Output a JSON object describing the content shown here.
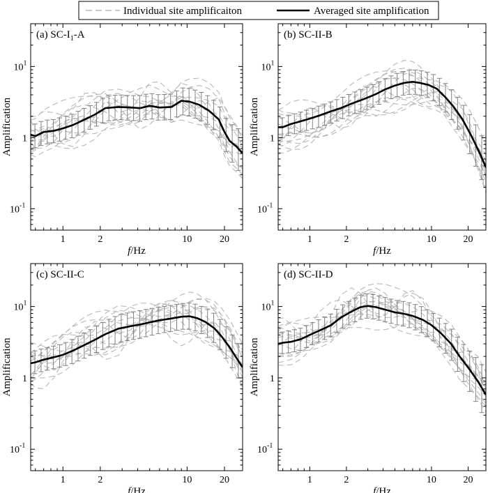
{
  "legend": {
    "individual_label": "Individual site amplificaiton",
    "average_label": "Averaged site amplification",
    "individual_color": "#b8b8b8",
    "average_color": "#000000",
    "errorbar_color": "#808080"
  },
  "chart_data": [
    {
      "type": "line",
      "panel_label": "(a) SC-I",
      "panel_label_sub": "1",
      "panel_label_suffix": "-A",
      "xlabel_italic": "f",
      "xlabel_rest": "/Hz",
      "ylabel": "Amplification",
      "xscale": "log",
      "yscale": "log",
      "xlim": [
        0.55,
        28
      ],
      "ylim": [
        0.05,
        40
      ],
      "x_ticks": [
        {
          "value": 1,
          "label": "1"
        },
        {
          "value": 2,
          "label": "2"
        },
        {
          "value": 10,
          "label": "10"
        },
        {
          "value": 20,
          "label": "20"
        }
      ],
      "y_ticks": [
        {
          "value": 0.1,
          "base": "10",
          "exp": "-1"
        },
        {
          "value": 1,
          "base": "1",
          "exp": ""
        },
        {
          "value": 10,
          "base": "10",
          "exp": "1"
        }
      ],
      "series": [
        {
          "role": "average",
          "x": [
            0.55,
            0.6,
            0.7,
            0.85,
            1.0,
            1.2,
            1.5,
            1.8,
            2.2,
            2.8,
            3.5,
            4.2,
            5.0,
            6.0,
            7.5,
            9.0,
            10.5,
            12.5,
            15.0,
            18.0,
            20.0,
            22.0,
            25.0,
            28.0
          ],
          "y": [
            1.1,
            1.05,
            1.2,
            1.25,
            1.35,
            1.5,
            1.8,
            2.1,
            2.6,
            2.7,
            2.65,
            2.6,
            2.8,
            2.65,
            2.7,
            3.3,
            3.2,
            2.9,
            2.4,
            1.8,
            1.2,
            0.9,
            0.75,
            0.6
          ],
          "err_low": [
            0.75,
            0.72,
            0.8,
            0.85,
            0.92,
            1.0,
            1.2,
            1.4,
            1.7,
            1.8,
            1.75,
            1.7,
            1.85,
            1.75,
            1.8,
            2.1,
            2.0,
            1.8,
            1.5,
            1.1,
            0.7,
            0.5,
            0.38,
            0.28
          ],
          "err_high": [
            1.6,
            1.55,
            1.75,
            1.8,
            1.95,
            2.15,
            2.6,
            3.0,
            3.8,
            4.0,
            3.9,
            3.9,
            4.2,
            4.0,
            4.1,
            5.0,
            4.9,
            4.5,
            3.8,
            2.9,
            2.0,
            1.6,
            1.4,
            1.2
          ]
        }
      ]
    },
    {
      "type": "line",
      "panel_label": "(b) SC-II-B",
      "panel_label_sub": "",
      "panel_label_suffix": "",
      "xlabel_italic": "f",
      "xlabel_rest": "/Hz",
      "ylabel": "Amplification",
      "xscale": "log",
      "yscale": "log",
      "xlim": [
        0.55,
        28
      ],
      "ylim": [
        0.05,
        40
      ],
      "x_ticks": [
        {
          "value": 1,
          "label": "1"
        },
        {
          "value": 2,
          "label": "2"
        },
        {
          "value": 10,
          "label": "10"
        },
        {
          "value": 20,
          "label": "20"
        }
      ],
      "y_ticks": [
        {
          "value": 0.1,
          "base": "10",
          "exp": "-1"
        },
        {
          "value": 1,
          "base": "1",
          "exp": ""
        },
        {
          "value": 10,
          "base": "10",
          "exp": "1"
        }
      ],
      "series": [
        {
          "role": "average",
          "x": [
            0.55,
            0.6,
            0.7,
            0.85,
            1.0,
            1.2,
            1.5,
            1.8,
            2.2,
            2.8,
            3.5,
            4.2,
            5.0,
            6.0,
            7.0,
            8.0,
            9.5,
            11.0,
            13.0,
            15.0,
            18.0,
            21.0,
            25.0,
            28.0
          ],
          "y": [
            1.4,
            1.4,
            1.55,
            1.7,
            1.85,
            2.05,
            2.35,
            2.6,
            3.0,
            3.5,
            4.1,
            4.8,
            5.4,
            5.9,
            6.1,
            5.9,
            5.5,
            4.9,
            3.7,
            2.8,
            1.8,
            1.1,
            0.6,
            0.38
          ],
          "err_low": [
            1.0,
            1.0,
            1.1,
            1.2,
            1.3,
            1.4,
            1.6,
            1.8,
            2.1,
            2.4,
            2.8,
            3.3,
            3.7,
            4.0,
            4.1,
            4.0,
            3.6,
            3.1,
            2.3,
            1.7,
            1.0,
            0.55,
            0.3,
            0.18
          ],
          "err_high": [
            1.9,
            1.9,
            2.1,
            2.3,
            2.5,
            2.8,
            3.2,
            3.6,
            4.2,
            4.9,
            5.8,
            6.8,
            7.8,
            8.6,
            9.0,
            8.8,
            8.2,
            7.4,
            5.8,
            4.5,
            3.0,
            2.0,
            1.2,
            0.8
          ]
        }
      ]
    },
    {
      "type": "line",
      "panel_label": "(c) SC-II-C",
      "panel_label_sub": "",
      "panel_label_suffix": "",
      "xlabel_italic": "f",
      "xlabel_rest": "/Hz",
      "ylabel": "Amplification",
      "xscale": "log",
      "yscale": "log",
      "xlim": [
        0.55,
        28
      ],
      "ylim": [
        0.05,
        40
      ],
      "x_ticks": [
        {
          "value": 1,
          "label": "1"
        },
        {
          "value": 2,
          "label": "2"
        },
        {
          "value": 10,
          "label": "10"
        },
        {
          "value": 20,
          "label": "20"
        }
      ],
      "y_ticks": [
        {
          "value": 0.1,
          "base": "10",
          "exp": "-1"
        },
        {
          "value": 1,
          "base": "1",
          "exp": ""
        },
        {
          "value": 10,
          "base": "10",
          "exp": "1"
        }
      ],
      "series": [
        {
          "role": "average",
          "x": [
            0.55,
            0.6,
            0.7,
            0.85,
            1.0,
            1.2,
            1.5,
            1.8,
            2.2,
            2.8,
            3.5,
            4.2,
            5.0,
            6.0,
            7.5,
            9.0,
            10.5,
            12.0,
            14.0,
            16.5,
            19.0,
            22.0,
            25.0,
            28.0
          ],
          "y": [
            1.6,
            1.65,
            1.8,
            1.95,
            2.1,
            2.4,
            2.9,
            3.4,
            4.1,
            4.9,
            5.3,
            5.6,
            6.0,
            6.4,
            6.8,
            7.2,
            7.3,
            6.9,
            6.1,
            5.0,
            3.8,
            2.7,
            1.9,
            1.4
          ],
          "err_low": [
            1.1,
            1.15,
            1.25,
            1.35,
            1.45,
            1.6,
            1.9,
            2.2,
            2.6,
            3.1,
            3.4,
            3.6,
            3.9,
            4.2,
            4.5,
            4.8,
            4.8,
            4.5,
            3.9,
            3.1,
            2.3,
            1.6,
            1.1,
            0.8
          ],
          "err_high": [
            2.3,
            2.4,
            2.6,
            2.8,
            3.0,
            3.5,
            4.3,
            5.1,
            6.3,
            7.6,
            8.3,
            8.8,
            9.3,
            9.8,
            10.4,
            11.0,
            11.2,
            10.7,
            9.5,
            8.0,
            6.2,
            4.5,
            3.3,
            2.5
          ]
        }
      ]
    },
    {
      "type": "line",
      "panel_label": "(d) SC-II-D",
      "panel_label_sub": "",
      "panel_label_suffix": "",
      "xlabel_italic": "f",
      "xlabel_rest": "/Hz",
      "ylabel": "Amplification",
      "xscale": "log",
      "yscale": "log",
      "xlim": [
        0.55,
        28
      ],
      "ylim": [
        0.05,
        40
      ],
      "x_ticks": [
        {
          "value": 1,
          "label": "1"
        },
        {
          "value": 2,
          "label": "2"
        },
        {
          "value": 10,
          "label": "10"
        },
        {
          "value": 20,
          "label": "20"
        }
      ],
      "y_ticks": [
        {
          "value": 0.1,
          "base": "10",
          "exp": "-1"
        },
        {
          "value": 1,
          "base": "1",
          "exp": ""
        },
        {
          "value": 10,
          "base": "10",
          "exp": "1"
        }
      ],
      "series": [
        {
          "role": "average",
          "x": [
            0.55,
            0.6,
            0.7,
            0.85,
            1.0,
            1.2,
            1.5,
            1.8,
            2.2,
            2.6,
            3.0,
            3.5,
            4.2,
            5.0,
            6.0,
            7.0,
            8.5,
            10.0,
            12.0,
            14.5,
            17.0,
            20.0,
            24.0,
            28.0
          ],
          "y": [
            3.0,
            3.1,
            3.2,
            3.5,
            4.0,
            4.6,
            5.5,
            7.0,
            8.5,
            9.8,
            10.2,
            9.8,
            9.0,
            8.3,
            7.9,
            7.4,
            6.5,
            5.5,
            4.2,
            3.0,
            2.0,
            1.4,
            0.9,
            0.58
          ],
          "err_low": [
            2.1,
            2.2,
            2.25,
            2.45,
            2.8,
            3.2,
            3.8,
            4.8,
            5.8,
            6.6,
            6.9,
            6.6,
            6.1,
            5.6,
            5.3,
            4.9,
            4.2,
            3.5,
            2.6,
            1.8,
            1.1,
            0.7,
            0.42,
            0.25
          ],
          "err_high": [
            4.3,
            4.4,
            4.6,
            5.0,
            5.7,
            6.6,
            7.9,
            10.2,
            12.4,
            14.4,
            15.1,
            14.5,
            13.3,
            12.3,
            11.7,
            11.0,
            9.8,
            8.4,
            6.6,
            4.9,
            3.4,
            2.5,
            1.8,
            1.3
          ]
        }
      ]
    }
  ]
}
